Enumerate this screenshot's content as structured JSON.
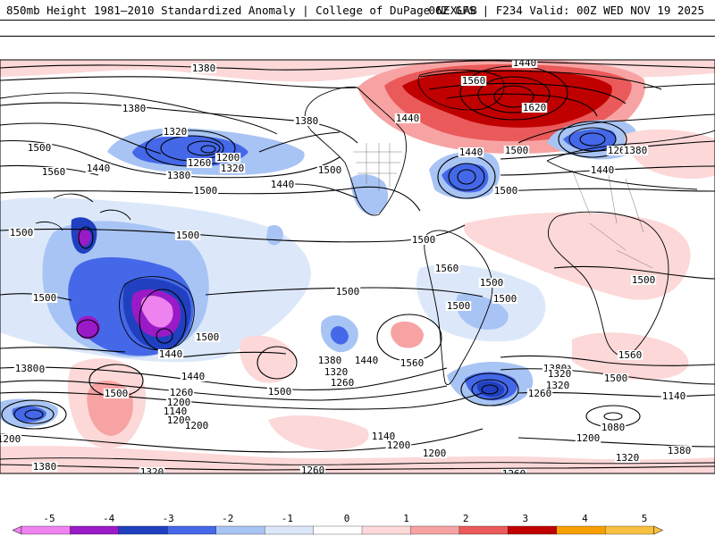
{
  "header": {
    "left": "850mb Height 1981–2010 Standardized Anomaly | College of DuPage NEXLAB",
    "right": "06Z GFS | F234 Valid: 00Z WED NOV 19 2025"
  },
  "colorbar": {
    "ticks": [
      "-5",
      "-4",
      "-3",
      "-2",
      "-1",
      "0",
      "1",
      "2",
      "3",
      "4",
      "5"
    ],
    "colors": [
      "#ee82ee",
      "#9a1ac8",
      "#2040c0",
      "#4468e8",
      "#a8c4f4",
      "#dce8fa",
      "#ffffff",
      "#fcd8d8",
      "#f7a3a3",
      "#ea5a5a",
      "#c00000",
      "#f5a000",
      "#f8c040"
    ]
  },
  "contour_labels": [
    {
      "text": "1440"
    },
    {
      "text": "1380"
    },
    {
      "text": "1380"
    },
    {
      "text": "1560"
    },
    {
      "text": "1620"
    },
    {
      "text": "1440"
    },
    {
      "text": "1380"
    },
    {
      "text": "1320"
    },
    {
      "text": "1200"
    },
    {
      "text": "1260"
    },
    {
      "text": "1320"
    },
    {
      "text": "1380"
    },
    {
      "text": "1440"
    },
    {
      "text": "1500"
    },
    {
      "text": "1440"
    },
    {
      "text": "1500"
    },
    {
      "text": "1260"
    },
    {
      "text": "1380"
    },
    {
      "text": "1500"
    },
    {
      "text": "1560"
    },
    {
      "text": "1440"
    },
    {
      "text": "1440"
    },
    {
      "text": "1500"
    },
    {
      "text": "1500"
    },
    {
      "text": "1500"
    },
    {
      "text": "1500"
    },
    {
      "text": "1500"
    },
    {
      "text": "1560"
    },
    {
      "text": "1500"
    },
    {
      "text": "1500"
    },
    {
      "text": "1500"
    },
    {
      "text": "1500"
    },
    {
      "text": "1500"
    },
    {
      "text": "1500"
    },
    {
      "text": "1500"
    },
    {
      "text": "1440"
    },
    {
      "text": "1560"
    },
    {
      "text": "1560"
    },
    {
      "text": "1380"
    },
    {
      "text": "1440"
    },
    {
      "text": "1380"
    },
    {
      "text": "1320"
    },
    {
      "text": "1500"
    },
    {
      "text": "1440"
    },
    {
      "text": "1320"
    },
    {
      "text": "1260"
    },
    {
      "text": "1200"
    },
    {
      "text": "1140"
    },
    {
      "text": "1500"
    },
    {
      "text": "1380"
    },
    {
      "text": "1320"
    },
    {
      "text": "1260"
    },
    {
      "text": "1380"
    },
    {
      "text": "1320"
    },
    {
      "text": "1260"
    },
    {
      "text": "1200"
    },
    {
      "text": "1500"
    },
    {
      "text": "1140"
    },
    {
      "text": "1200"
    },
    {
      "text": "1080"
    },
    {
      "text": "1200"
    },
    {
      "text": "1140"
    },
    {
      "text": "1200"
    },
    {
      "text": "1200"
    },
    {
      "text": "1200"
    },
    {
      "text": "1380"
    },
    {
      "text": "1320"
    },
    {
      "text": "1380"
    },
    {
      "text": "1320"
    },
    {
      "text": "1260"
    },
    {
      "text": "1260"
    }
  ]
}
